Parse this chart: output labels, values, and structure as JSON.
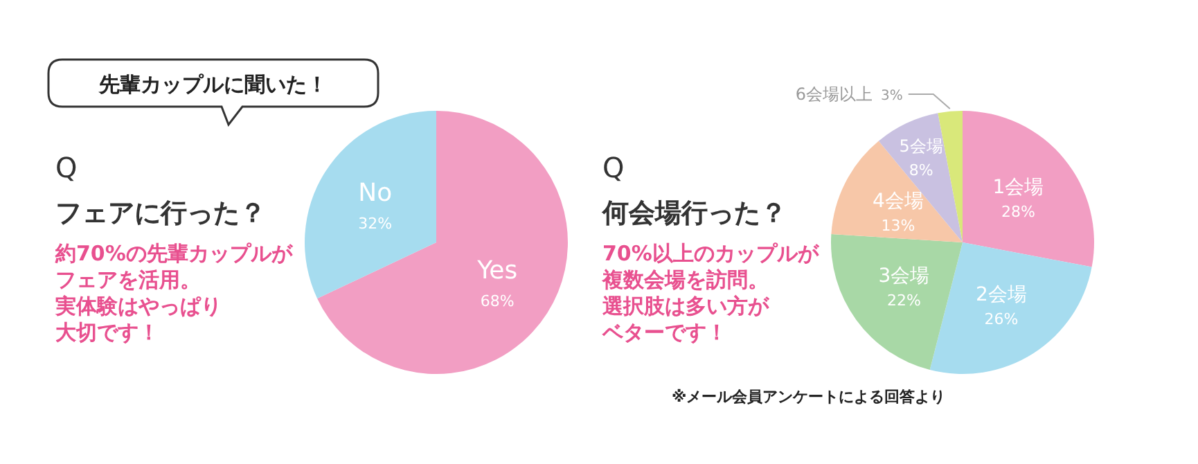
{
  "chart_data": [
    {
      "type": "pie",
      "title": "Q",
      "subtitle": "フェアに行った？",
      "categories": [
        "Yes",
        "No"
      ],
      "values": [
        68,
        32
      ],
      "colors": [
        "#f29ec3",
        "#a6dcef"
      ],
      "value_labels": [
        "68%",
        "32%"
      ],
      "legend": false,
      "annotations": [
        "先輩カップルに聞いた！",
        "約70%の先輩カップルが",
        "フェアを活用。",
        "実体験はやっぱり",
        "大切です！"
      ]
    },
    {
      "type": "pie",
      "title": "Q",
      "subtitle": "何会場行った？",
      "categories": [
        "1会場",
        "2会場",
        "3会場",
        "4会場",
        "5会場",
        "6会場以上"
      ],
      "values": [
        28,
        26,
        22,
        13,
        8,
        3
      ],
      "colors": [
        "#f29ec3",
        "#a6dcef",
        "#a8d8a6",
        "#f7c7a8",
        "#c9c1e1",
        "#d9e87a"
      ],
      "value_labels": [
        "28%",
        "26%",
        "22%",
        "13%",
        "8%",
        "3%"
      ],
      "legend": false,
      "annotations": [
        "70%以上のカップルが",
        "複数会場を訪問。",
        "選択肢は多い方が",
        "ベターです！",
        "※メール会員アンケートによる回答より"
      ]
    }
  ]
}
